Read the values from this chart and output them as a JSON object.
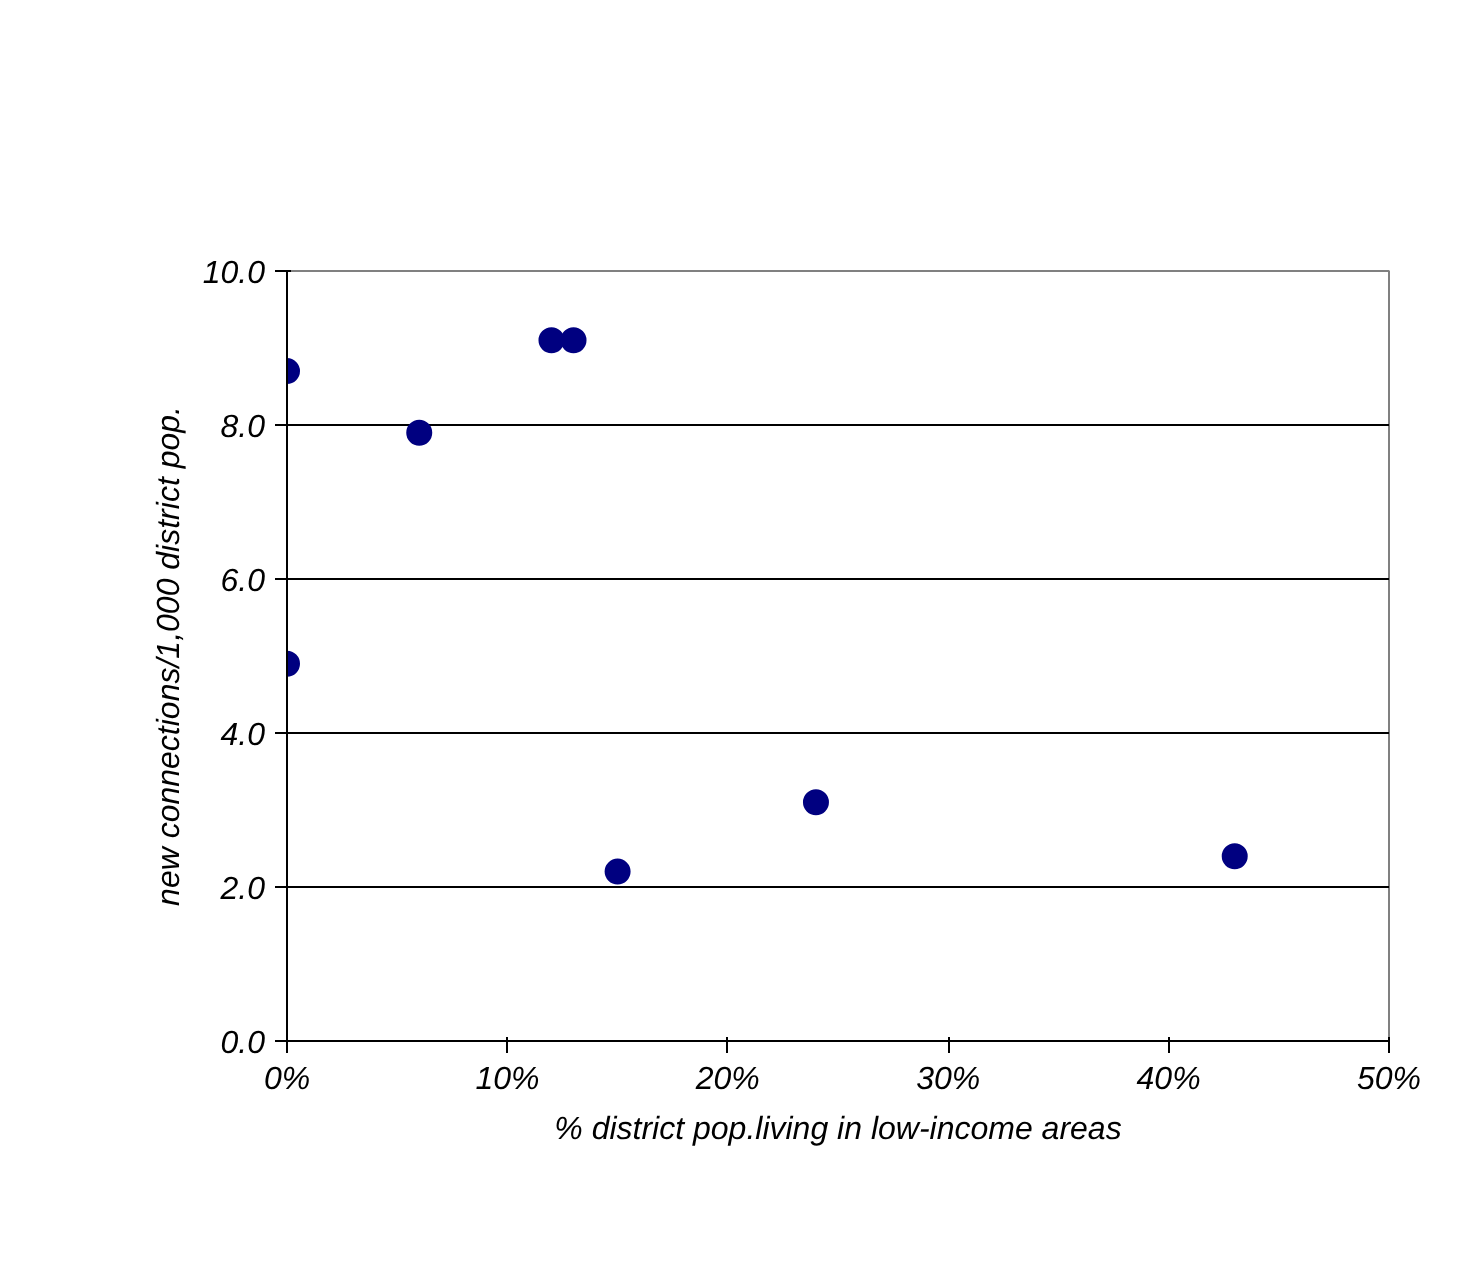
{
  "chart_data": {
    "type": "scatter",
    "xlabel": "% district pop.living in low-income areas",
    "ylabel": "new connections/1,000 district pop.",
    "x": [
      0,
      0,
      6,
      12,
      13,
      15,
      24,
      43
    ],
    "series": [
      {
        "color": "#000080",
        "values": [
          8.7,
          4.9,
          7.9,
          9.1,
          9.1,
          2.2,
          3.1,
          2.4
        ]
      }
    ],
    "xlim": [
      0,
      50
    ],
    "ylim": [
      0,
      10
    ],
    "xticks": [
      {
        "value": 0,
        "label": "0%"
      },
      {
        "value": 10,
        "label": "10%"
      },
      {
        "value": 20,
        "label": "20%"
      },
      {
        "value": 30,
        "label": "30%"
      },
      {
        "value": 40,
        "label": "40%"
      },
      {
        "value": 50,
        "label": "50%"
      }
    ],
    "yticks": [
      {
        "value": 0,
        "label": "0.0"
      },
      {
        "value": 2,
        "label": "2.0"
      },
      {
        "value": 4,
        "label": "4.0"
      },
      {
        "value": 6,
        "label": "6.0"
      },
      {
        "value": 8,
        "label": "8.0"
      },
      {
        "value": 10,
        "label": "10.0"
      }
    ],
    "grid": "y",
    "marker": "circle"
  }
}
